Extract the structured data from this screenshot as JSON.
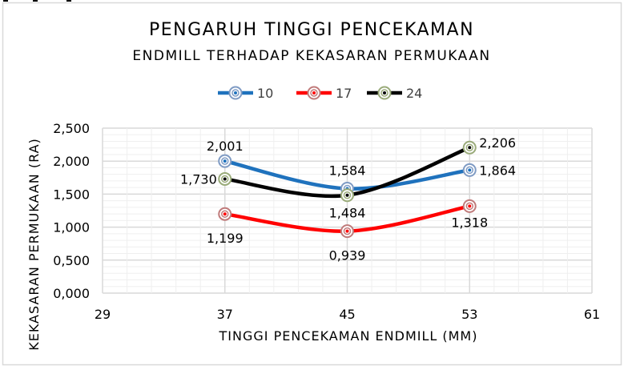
{
  "chart_data": {
    "type": "line",
    "title": "PENGARUH TINGGI PENCEKAMAN",
    "subtitle": "ENDMILL TERHADAP KEKASARAN PERMUKAAN",
    "xlabel": "TINGGI PENCEKAMAN ENDMILL (MM)",
    "ylabel": "KEKASARAN PERMUKAAN (RA)",
    "x": [
      37,
      45,
      53
    ],
    "xlim": [
      29,
      61
    ],
    "xticks": [
      29,
      37,
      45,
      53,
      61
    ],
    "ylim": [
      0,
      2.5
    ],
    "yticks": [
      "0,000",
      "0,500",
      "1,000",
      "1,500",
      "2,000",
      "2,500"
    ],
    "ytick_values": [
      0,
      0.5,
      1.0,
      1.5,
      2.0,
      2.5
    ],
    "grid": true,
    "smooth": true,
    "legend_position": "top",
    "series": [
      {
        "name": "10",
        "values": [
          2.001,
          1.584,
          1.864
        ],
        "labels": [
          "2,001",
          "1,584",
          "1,864"
        ],
        "color": "#1f72bd",
        "marker_color": "#7f9bc4"
      },
      {
        "name": "17",
        "values": [
          1.199,
          0.939,
          1.318
        ],
        "labels": [
          "1,199",
          "0,939",
          "1,318"
        ],
        "color": "#ff0000",
        "marker_color": "#c07b7b"
      },
      {
        "name": "24",
        "values": [
          1.73,
          1.484,
          2.206
        ],
        "labels": [
          "1,730",
          "1,484",
          "2,206"
        ],
        "color": "#000000",
        "marker_color": "#9aab7a"
      }
    ]
  }
}
